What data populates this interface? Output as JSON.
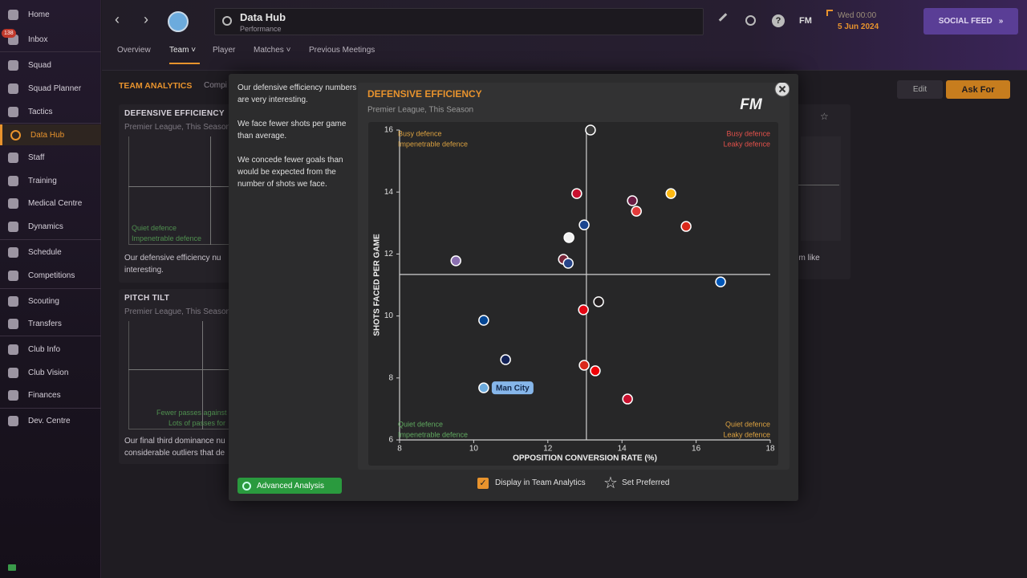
{
  "sidebar": {
    "items": [
      "Home",
      "Inbox",
      "Squad",
      "Squad Planner",
      "Tactics",
      "Data Hub",
      "Staff",
      "Training",
      "Medical Centre",
      "Dynamics",
      "Schedule",
      "Competitions",
      "Scouting",
      "Transfers",
      "Club Info",
      "Club Vision",
      "Finances",
      "Dev. Centre"
    ],
    "inbox_badge": 138
  },
  "topbar": {
    "title": "Data Hub",
    "subtitle": "Performance",
    "logo": "FM",
    "time": "Wed 00:00",
    "date": "5 Jun 2024",
    "button": "SOCIAL FEED"
  },
  "tabs": [
    "Overview",
    "Team",
    "Player",
    "Matches",
    "Previous Meetings"
  ],
  "background": {
    "section": "TEAM ANALYTICS",
    "section_note": "Compi",
    "cards": [
      {
        "title": "DEFENSIVE EFFICIENCY",
        "subtitle": "Premier League, This Season",
        "labels": [
          "Quiet defence",
          "Impenetrable defence"
        ],
        "text": [
          "Our defensive efficiency nu",
          "interesting."
        ]
      },
      {
        "title": "PITCH TILT",
        "subtitle": "Premier League, This Season",
        "labels": [
          "Fewer passes against",
          "Lots of passes for"
        ],
        "text": [
          "Our final third dominance nu",
          "considerable outliers that de"
        ]
      }
    ],
    "right_text": "em like",
    "buttons": [
      "Edit",
      "Ask For"
    ]
  },
  "modal": {
    "paragraphs": [
      "Our defensive efficiency numbers are very interesting.",
      "We face fewer shots per game than average.",
      "We concede fewer goals than would be expected from the number of shots we face."
    ],
    "advanced_button": "Advanced Analysis",
    "checkbox": "Display in Team Analytics",
    "checkbox_checked": true,
    "preferred": "Set Preferred"
  },
  "chart_data": {
    "type": "scatter",
    "title": "DEFENSIVE EFFICIENCY",
    "subtitle": "Premier League, This Season",
    "logo": "FM",
    "x_label": "OPPOSITION CONVERSION RATE (%)",
    "y_label": "SHOTS FACED PER GAME",
    "x": [
      13.15,
      12.78,
      14.28,
      14.39,
      15.32,
      12.98,
      15.73,
      12.57,
      9.52,
      12.42,
      12.55,
      16.66,
      13.37,
      12.96,
      10.27,
      10.86,
      12.98,
      13.28,
      10.27,
      14.15
    ],
    "y": [
      16.0,
      13.95,
      13.72,
      13.38,
      13.95,
      12.94,
      12.89,
      12.53,
      11.78,
      11.83,
      11.7,
      11.1,
      10.46,
      10.2,
      9.86,
      8.59,
      8.41,
      8.23,
      7.68,
      7.32
    ],
    "colors": [
      "#3a3a3a",
      "#c8102e",
      "#6c1d45",
      "#e23b3b",
      "#fdb913",
      "#1b458f",
      "#da291c",
      "#f2f2f2",
      "#8a6fb0",
      "#7a263a",
      "#274488",
      "#0057b8",
      "#241f20",
      "#e30613",
      "#034694",
      "#132257",
      "#da291c",
      "#ef0107",
      "#6cabdd",
      "#c8102e"
    ],
    "xlim": [
      8,
      18
    ],
    "xticks": [
      8,
      10,
      12,
      14,
      16,
      18
    ],
    "ylim": [
      6,
      16
    ],
    "yticks": [
      6,
      8,
      10,
      12,
      14,
      16
    ],
    "reference_lines": {
      "x": 13.04,
      "y": 11.34
    },
    "annotations": [
      {
        "text": "Man City",
        "point": 18
      }
    ],
    "quadrant_labels": {
      "top_left": [
        "Busy defence",
        "Impenetrable defence"
      ],
      "top_right": [
        "Busy defence",
        "Leaky defence"
      ],
      "bottom_left": [
        "Quiet defence",
        "Impenetrable defence"
      ],
      "bottom_right": [
        "Quiet defence",
        "Leaky defence"
      ]
    },
    "quadrant_colors": {
      "top_left": "#d9a040",
      "top_right": "#e0504a",
      "bottom_left": "#5fa85f",
      "bottom_right": "#d9a040"
    }
  }
}
